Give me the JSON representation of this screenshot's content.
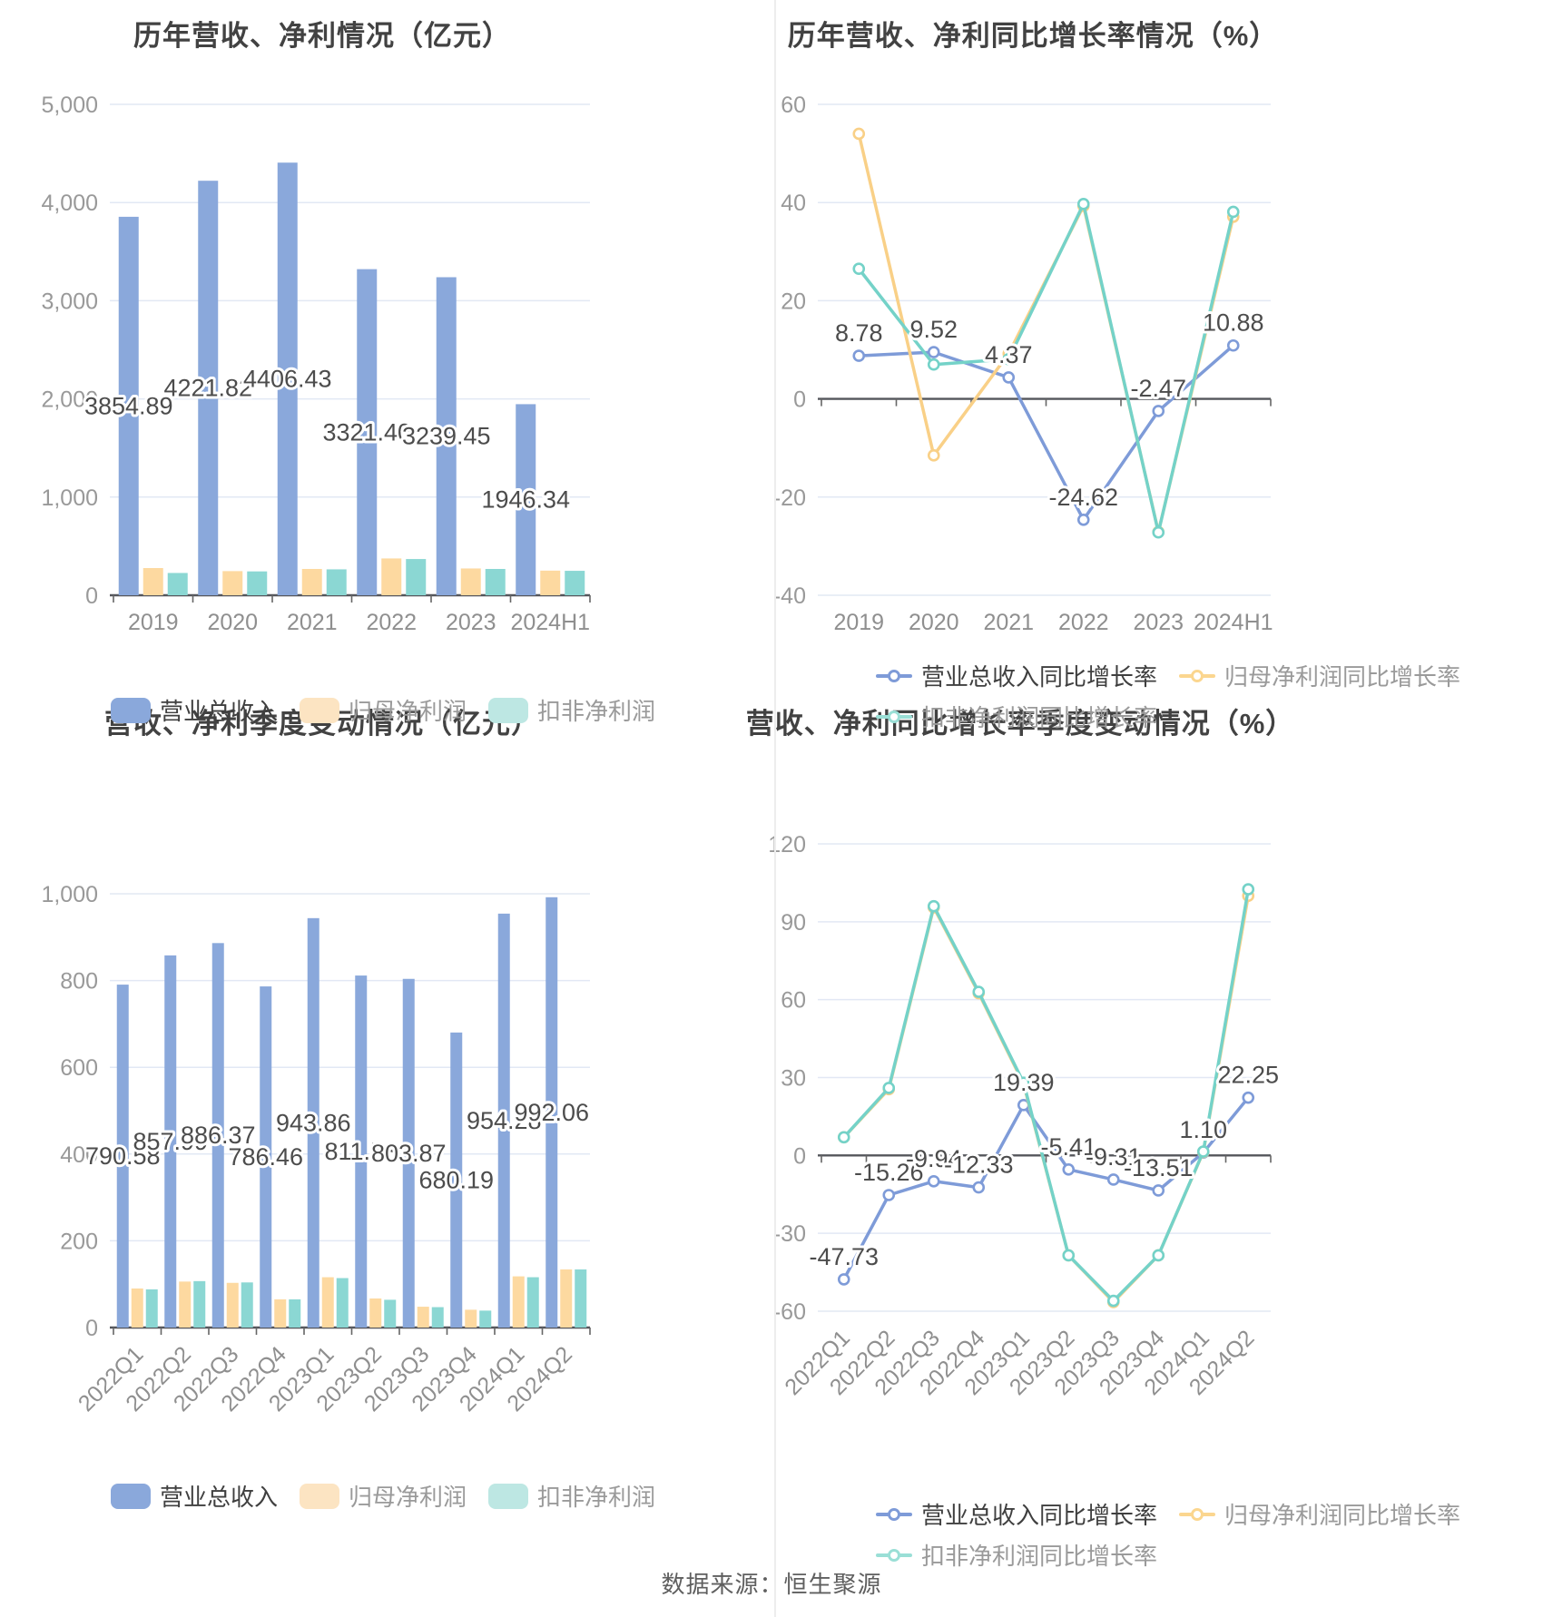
{
  "page": {
    "footer": "数据来源：恒生聚源",
    "colors": {
      "background": "#ffffff",
      "divider": "#ededed",
      "title": "#424242",
      "axis_label": "#8f8f8f",
      "tick_label": "#999999",
      "data_label": "#4c4c4c",
      "grid_line": "#e2e8f4",
      "zero_line": "#54565b",
      "halo": "#ffffff"
    }
  },
  "series_colors": {
    "revenue_bar": "#8aa8db",
    "net_profit_bar": "#fdd9a0",
    "non_gaap_bar": "#8bd7d3",
    "revenue_line": "#7e9bd8",
    "net_profit_line": "#f9d087",
    "non_gaap_line": "#74d2c8",
    "legend_revenue_swatch": "#8aa8db",
    "legend_net_profit_swatch": "#fce4c2",
    "legend_non_gaap_swatch": "#bde7e3",
    "legend_revenue_line": "#7e9bd8",
    "legend_net_profit_line": "#fbd68f",
    "legend_non_gaap_line": "#9adfd6"
  },
  "chart_data": [
    {
      "id": "annual-values",
      "type": "bar",
      "title": "历年营收、净利情况（亿元）",
      "categories": [
        "2019",
        "2020",
        "2021",
        "2022",
        "2023",
        "2024H1"
      ],
      "ylim": [
        0,
        5000
      ],
      "ytick_labels": [
        "5,000",
        "4,000",
        "3,000",
        "2,000",
        "1,000",
        "0"
      ],
      "grid_on": true,
      "legend_position": "bottom",
      "series": [
        {
          "name": "营业总收入",
          "color_key": "revenue_bar",
          "values": [
            3854.89,
            4221.82,
            4406.43,
            3321.4,
            3239.45,
            1946.34
          ],
          "data_labels": [
            "3854.89",
            "4221.82",
            "4406.43",
            "3321.40",
            "3239.45",
            "1946.34"
          ]
        },
        {
          "name": "归母净利润",
          "color_key": "net_profit_bar",
          "values": [
            277,
            246,
            268,
            375,
            273,
            251
          ]
        },
        {
          "name": "扣非净利润",
          "color_key": "non_gaap_bar",
          "values": [
            227,
            243,
            264,
            369,
            268,
            249
          ]
        }
      ]
    },
    {
      "id": "annual-growth",
      "type": "line",
      "title": "历年营收、净利同比增长率情况（%）",
      "categories": [
        "2019",
        "2020",
        "2021",
        "2022",
        "2023",
        "2024H1"
      ],
      "ylim": [
        -40,
        60
      ],
      "ytick_labels": [
        "60",
        "40",
        "20",
        "0",
        "-20",
        "-40"
      ],
      "grid_on": true,
      "legend_position": "bottom",
      "series": [
        {
          "name": "营业总收入同比增长率",
          "color_key": "revenue_line",
          "values": [
            8.78,
            9.52,
            4.37,
            -24.62,
            -2.47,
            10.88
          ],
          "data_labels": [
            "8.78",
            "9.52",
            "4.37",
            "-24.62",
            "-2.47",
            "10.88"
          ]
        },
        {
          "name": "归母净利润同比增长率",
          "color_key": "net_profit_line",
          "values": [
            54.0,
            -11.5,
            9.2,
            39.3,
            -27.1,
            37.1
          ]
        },
        {
          "name": "扣非净利润同比增长率",
          "color_key": "non_gaap_line",
          "values": [
            26.5,
            7.0,
            8.1,
            39.7,
            -27.2,
            38.1
          ]
        }
      ]
    },
    {
      "id": "quarterly-values",
      "type": "bar",
      "title": "营收、净利季度变动情况（亿元）",
      "categories": [
        "2022Q1",
        "2022Q2",
        "2022Q3",
        "2022Q4",
        "2023Q1",
        "2023Q2",
        "2023Q3",
        "2023Q4",
        "2024Q1",
        "2024Q2"
      ],
      "rotate_labels": 45,
      "ylim": [
        0,
        1000
      ],
      "ytick_labels": [
        "1,000",
        "800",
        "600",
        "400",
        "200",
        "0"
      ],
      "grid_on": true,
      "legend_position": "bottom",
      "series": [
        {
          "name": "营业总收入",
          "color_key": "revenue_bar",
          "values": [
            790.58,
            857.99,
            886.37,
            786.46,
            943.86,
            811.53,
            803.87,
            680.19,
            954.28,
            992.06
          ],
          "data_labels": [
            "790.58",
            "857.99",
            "886.37",
            "786.46",
            "943.86",
            "811.53",
            "803.87",
            "680.19",
            "954.28",
            "992.06"
          ]
        },
        {
          "name": "归母净利润",
          "color_key": "net_profit_bar",
          "values": [
            90,
            106,
            103,
            65,
            116,
            67,
            48,
            41,
            118,
            134
          ]
        },
        {
          "name": "扣非净利润",
          "color_key": "non_gaap_bar",
          "values": [
            88,
            107,
            104,
            65,
            114,
            64,
            47,
            39,
            116,
            134
          ]
        }
      ]
    },
    {
      "id": "quarterly-growth",
      "type": "line",
      "title": "营收、净利同比增长率季度变动情况（%）",
      "categories": [
        "2022Q1",
        "2022Q2",
        "2022Q3",
        "2022Q4",
        "2023Q1",
        "2023Q2",
        "2023Q3",
        "2023Q4",
        "2024Q1",
        "2024Q2"
      ],
      "rotate_labels": 45,
      "ylim": [
        -60,
        120
      ],
      "ytick_labels": [
        "120",
        "90",
        "60",
        "30",
        "0",
        "-30",
        "-60"
      ],
      "grid_on": true,
      "legend_position": "bottom",
      "series": [
        {
          "name": "营业总收入同比增长率",
          "color_key": "revenue_line",
          "values": [
            -47.73,
            -15.26,
            -9.94,
            -12.33,
            19.39,
            -5.41,
            -9.31,
            -13.51,
            1.1,
            22.25
          ],
          "data_labels": [
            "-47.73",
            "-15.26",
            "-9.94",
            "-12.33",
            "19.39",
            "-5.41",
            "-9.31",
            "-13.51",
            "1.10",
            "22.25"
          ]
        },
        {
          "name": "归母净利润同比增长率",
          "color_key": "net_profit_line",
          "values": [
            7.0,
            25.5,
            95.5,
            62.5,
            27.5,
            -38.5,
            -56.5,
            -38.5,
            1.3,
            100.0
          ]
        },
        {
          "name": "扣非净利润同比增长率",
          "color_key": "non_gaap_line",
          "values": [
            7.0,
            26.0,
            96.0,
            63.0,
            28.0,
            -38.5,
            -56.0,
            -38.5,
            1.5,
            102.5
          ]
        }
      ]
    }
  ]
}
